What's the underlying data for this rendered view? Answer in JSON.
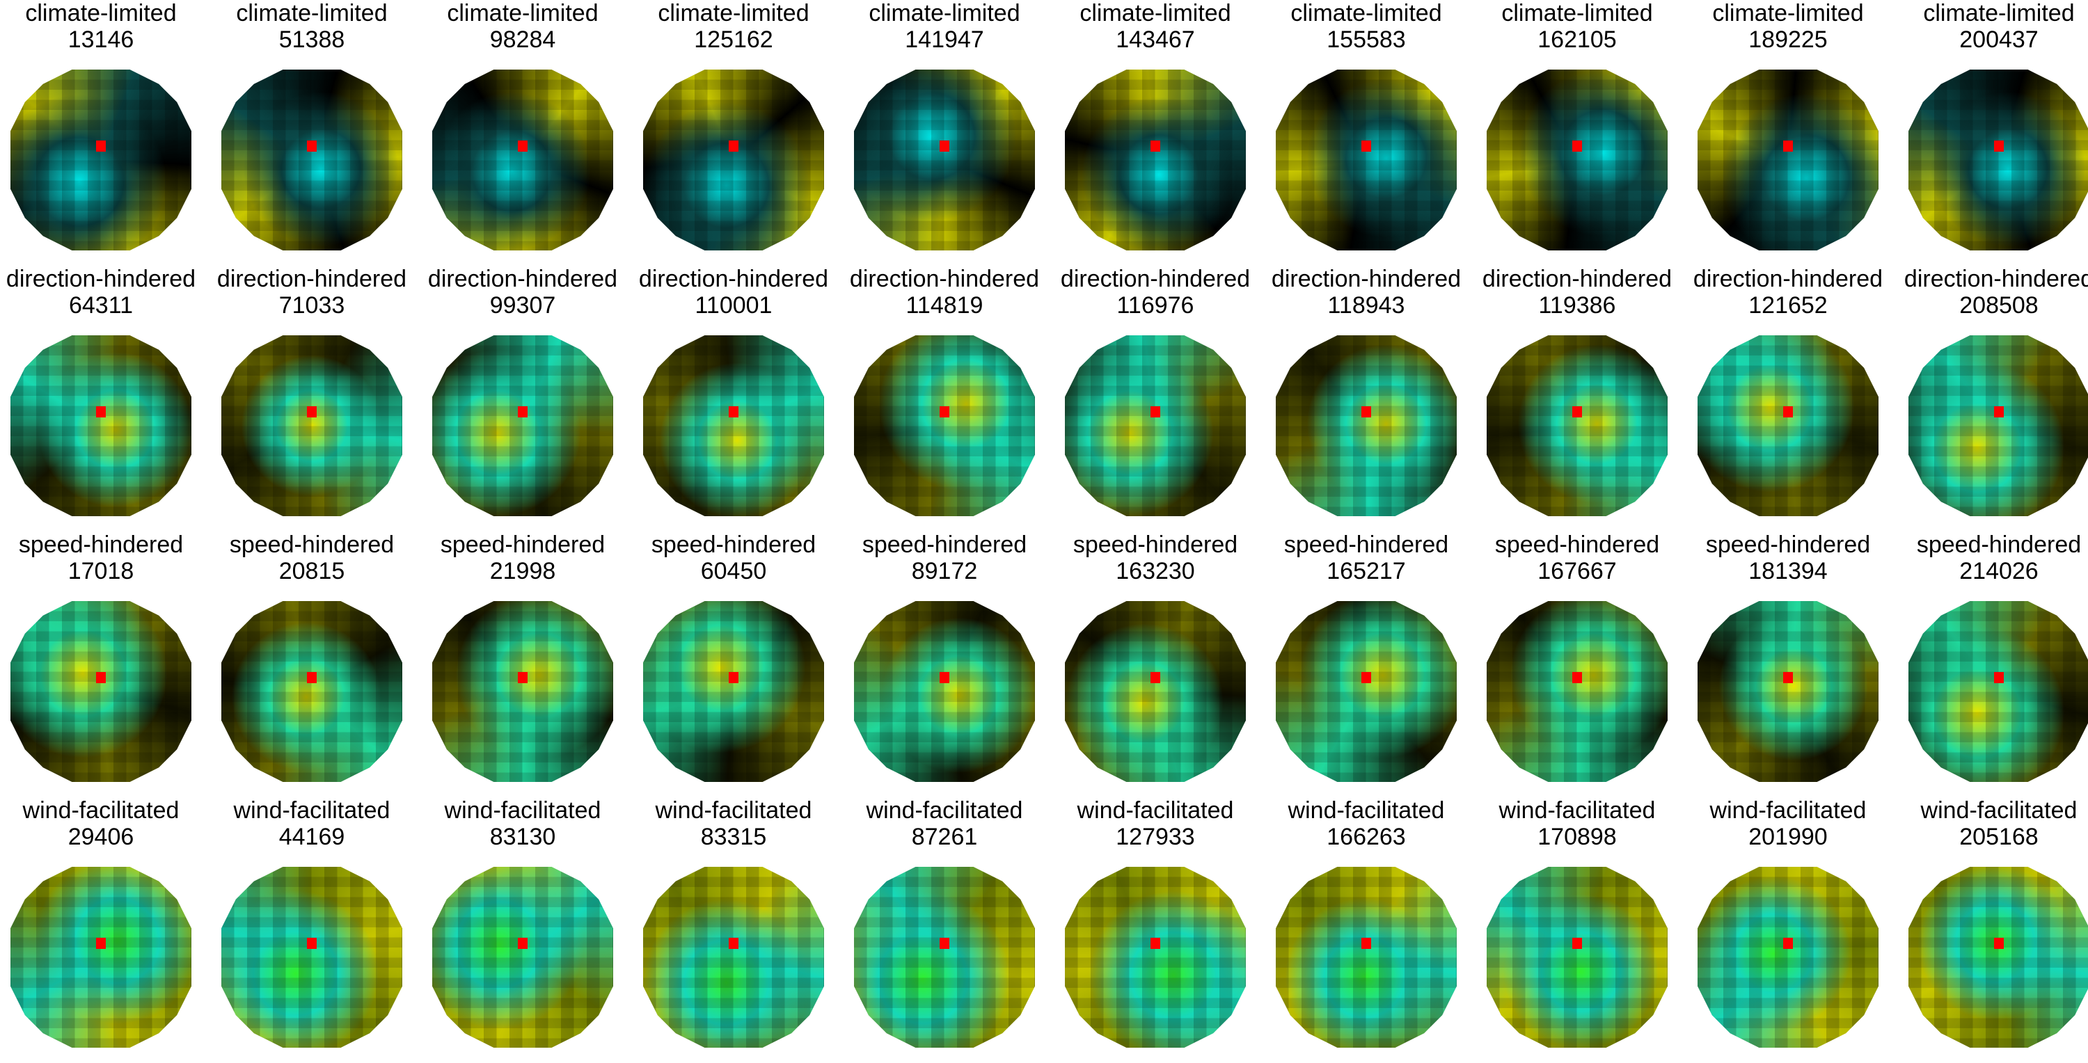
{
  "colors": {
    "center_marker": "#ff0000",
    "background": "#ffffff"
  },
  "rows": [
    {
      "category": "climate-limited",
      "palette": [
        "#000000",
        "#00e5e5",
        "#0a4a4a",
        "#c9c800"
      ],
      "panels": [
        {
          "label": "climate-limited",
          "id": "13146"
        },
        {
          "label": "climate-limited",
          "id": "51388"
        },
        {
          "label": "climate-limited",
          "id": "98284"
        },
        {
          "label": "climate-limited",
          "id": "125162"
        },
        {
          "label": "climate-limited",
          "id": "141947"
        },
        {
          "label": "climate-limited",
          "id": "143467"
        },
        {
          "label": "climate-limited",
          "id": "155583"
        },
        {
          "label": "climate-limited",
          "id": "162105"
        },
        {
          "label": "climate-limited",
          "id": "189225"
        },
        {
          "label": "climate-limited",
          "id": "200437"
        }
      ]
    },
    {
      "category": "direction-hindered",
      "palette": [
        "#6b6a00",
        "#e0e000",
        "#18d8b0",
        "#1a1a00"
      ],
      "panels": [
        {
          "label": "direction-hindered",
          "id": "64311"
        },
        {
          "label": "direction-hindered",
          "id": "71033"
        },
        {
          "label": "direction-hindered",
          "id": "99307"
        },
        {
          "label": "direction-hindered",
          "id": "110001"
        },
        {
          "label": "direction-hindered",
          "id": "114819"
        },
        {
          "label": "direction-hindered",
          "id": "116976"
        },
        {
          "label": "direction-hindered",
          "id": "118943"
        },
        {
          "label": "direction-hindered",
          "id": "119386"
        },
        {
          "label": "direction-hindered",
          "id": "121652"
        },
        {
          "label": "direction-hindered",
          "id": "208508"
        }
      ]
    },
    {
      "category": "speed-hindered",
      "palette": [
        "#6f6e00",
        "#e6e600",
        "#20d89c",
        "#101000"
      ],
      "panels": [
        {
          "label": "speed-hindered",
          "id": "17018"
        },
        {
          "label": "speed-hindered",
          "id": "20815"
        },
        {
          "label": "speed-hindered",
          "id": "21998"
        },
        {
          "label": "speed-hindered",
          "id": "60450"
        },
        {
          "label": "speed-hindered",
          "id": "89172"
        },
        {
          "label": "speed-hindered",
          "id": "163230"
        },
        {
          "label": "speed-hindered",
          "id": "165217"
        },
        {
          "label": "speed-hindered",
          "id": "167667"
        },
        {
          "label": "speed-hindered",
          "id": "181394"
        },
        {
          "label": "speed-hindered",
          "id": "214026"
        }
      ]
    },
    {
      "category": "wind-facilitated",
      "palette": [
        "#7a8a00",
        "#30ef30",
        "#16d8b8",
        "#c7c700"
      ],
      "panels": [
        {
          "label": "wind-facilitated",
          "id": "29406"
        },
        {
          "label": "wind-facilitated",
          "id": "44169"
        },
        {
          "label": "wind-facilitated",
          "id": "83130"
        },
        {
          "label": "wind-facilitated",
          "id": "83315"
        },
        {
          "label": "wind-facilitated",
          "id": "87261"
        },
        {
          "label": "wind-facilitated",
          "id": "127933"
        },
        {
          "label": "wind-facilitated",
          "id": "166263"
        },
        {
          "label": "wind-facilitated",
          "id": "170898"
        },
        {
          "label": "wind-facilitated",
          "id": "201990"
        },
        {
          "label": "wind-facilitated",
          "id": "205168"
        }
      ]
    }
  ]
}
